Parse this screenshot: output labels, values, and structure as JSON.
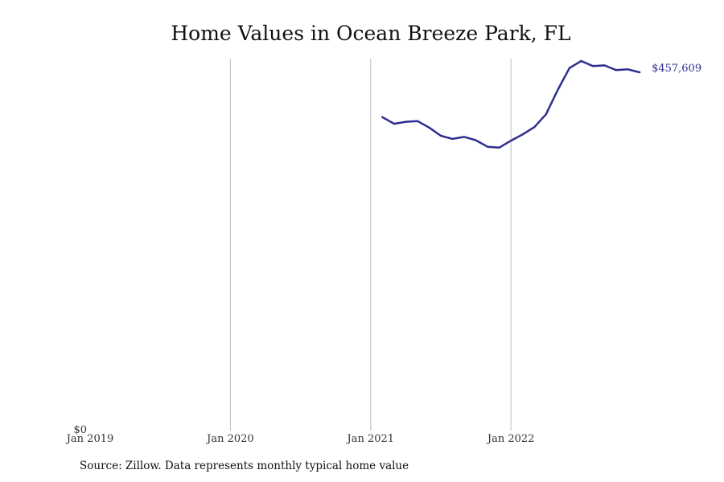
{
  "chart_data": {
    "type": "line",
    "title": "Home Values in Ocean Breeze Park, FL",
    "xlabel": "",
    "ylabel": "",
    "x_ticks": [
      "Jan 2019",
      "Jan 2020",
      "Jan 2021",
      "Jan 2022"
    ],
    "y_ticks": [
      "$0"
    ],
    "xlim": [
      "2019-01",
      "2022-12"
    ],
    "ylim": [
      0,
      475000
    ],
    "grid": "vertical lines at x ticks",
    "line_color": "#2e2e8f",
    "series": [
      {
        "x": [
          "2021-02",
          "2021-03",
          "2021-04",
          "2021-05",
          "2021-06",
          "2021-07",
          "2021-08",
          "2021-09",
          "2021-10",
          "2021-11",
          "2021-12",
          "2022-01",
          "2022-02",
          "2022-03",
          "2022-04",
          "2022-05",
          "2022-06",
          "2022-07",
          "2022-08",
          "2022-09",
          "2022-10",
          "2022-11",
          "2022-12"
        ],
        "values": [
          400300,
          391800,
          394400,
          395300,
          387000,
          376500,
          372500,
          375100,
          370800,
          362500,
          361400,
          370300,
          378300,
          387600,
          404000,
          435000,
          463000,
          472000,
          465600,
          466400,
          460300,
          461400,
          457609
        ]
      }
    ],
    "end_label": "$457,609"
  },
  "source_note": "Source: Zillow. Data represents monthly typical home value"
}
